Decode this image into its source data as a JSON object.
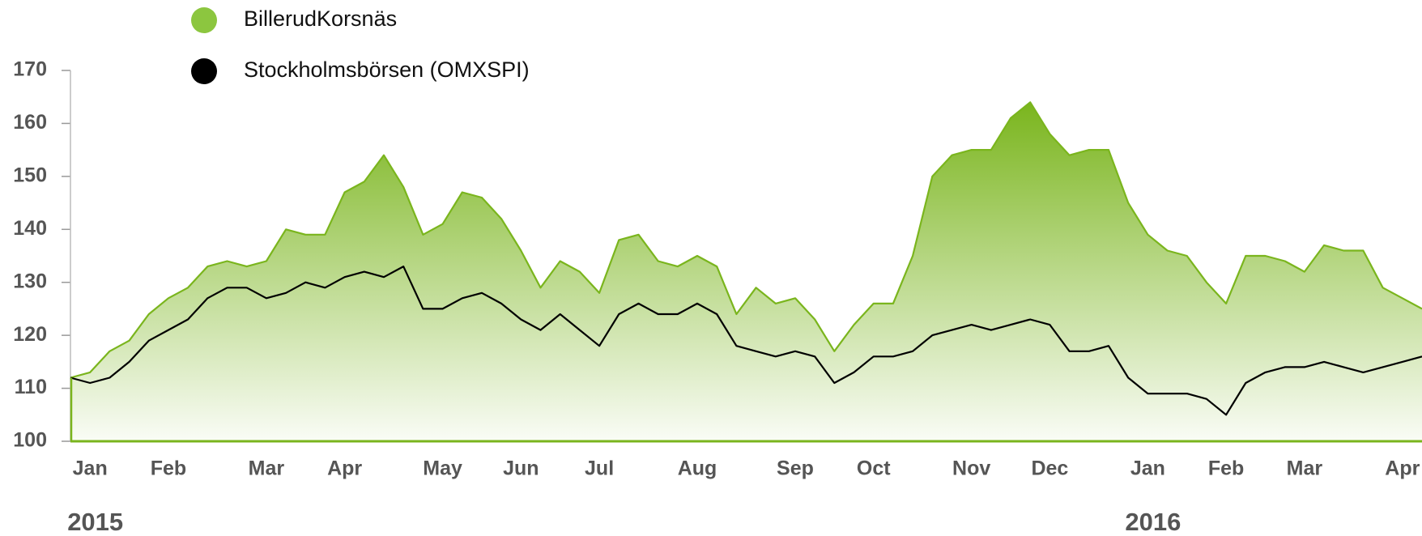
{
  "chart_data": {
    "type": "line",
    "categories": [
      null,
      "Jan",
      null,
      null,
      null,
      "Feb",
      null,
      null,
      null,
      null,
      "Mar",
      null,
      null,
      null,
      "Apr",
      null,
      null,
      null,
      null,
      "May",
      null,
      null,
      null,
      "Jun",
      null,
      null,
      null,
      "Jul",
      null,
      null,
      null,
      null,
      "Aug",
      null,
      null,
      null,
      null,
      "Sep",
      null,
      null,
      null,
      "Oct",
      null,
      null,
      null,
      null,
      "Nov",
      null,
      null,
      null,
      "Dec",
      null,
      null,
      null,
      null,
      "Jan",
      null,
      null,
      null,
      "Feb",
      null,
      null,
      null,
      "Mar",
      null,
      null,
      null,
      null,
      "Apr",
      null
    ],
    "year_labels": [
      "2015",
      "2016"
    ],
    "series": [
      {
        "name": "BillerudKorsnäs",
        "color": "#7ab51d",
        "fill": true,
        "values": [
          112,
          113,
          117,
          119,
          124,
          127,
          129,
          133,
          134,
          133,
          134,
          140,
          139,
          139,
          147,
          149,
          154,
          148,
          139,
          141,
          147,
          146,
          142,
          136,
          129,
          134,
          132,
          128,
          138,
          139,
          134,
          133,
          135,
          133,
          124,
          129,
          126,
          127,
          123,
          117,
          122,
          126,
          126,
          135,
          150,
          154,
          155,
          155,
          161,
          164,
          158,
          154,
          155,
          155,
          145,
          139,
          136,
          135,
          130,
          126,
          135,
          135,
          134,
          132,
          137,
          136,
          136,
          129,
          127,
          125
        ]
      },
      {
        "name": "Stockholmsbörsen (OMXSPI)",
        "color": "#000000",
        "fill": false,
        "values": [
          112,
          111,
          112,
          115,
          119,
          121,
          123,
          127,
          129,
          129,
          127,
          128,
          130,
          129,
          131,
          132,
          131,
          133,
          125,
          125,
          127,
          128,
          126,
          123,
          121,
          124,
          121,
          118,
          124,
          126,
          124,
          124,
          126,
          124,
          118,
          117,
          116,
          117,
          116,
          111,
          113,
          116,
          116,
          117,
          120,
          121,
          122,
          121,
          122,
          123,
          122,
          117,
          117,
          118,
          112,
          109,
          109,
          109,
          108,
          105,
          111,
          113,
          114,
          114,
          115,
          114,
          113,
          114,
          115,
          116
        ]
      }
    ],
    "ylim": [
      100,
      170
    ],
    "yticks": [
      100,
      110,
      120,
      130,
      140,
      150,
      160,
      170
    ],
    "grid": false
  }
}
